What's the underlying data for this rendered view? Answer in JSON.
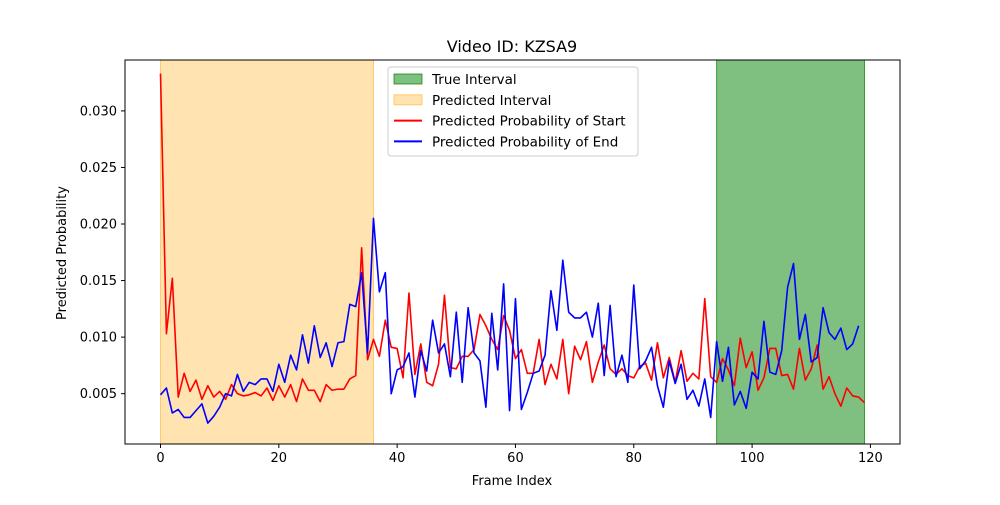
{
  "chart_data": {
    "type": "line",
    "title": "Video ID: KZSA9",
    "xlabel": "Frame Index",
    "ylabel": "Predicted Probability",
    "xlim": [
      -6,
      125
    ],
    "ylim": [
      0.00055,
      0.0345
    ],
    "xticks": [
      0,
      20,
      40,
      60,
      80,
      100,
      120
    ],
    "xtick_labels": [
      "0",
      "20",
      "40",
      "60",
      "80",
      "100",
      "120"
    ],
    "yticks": [
      0.005,
      0.01,
      0.015,
      0.02,
      0.025,
      0.03
    ],
    "ytick_labels": [
      "0.005",
      "0.010",
      "0.015",
      "0.020",
      "0.025",
      "0.030"
    ],
    "grid": false,
    "legend_position": "top-center",
    "legend": [
      {
        "label": "True Interval",
        "kind": "patch",
        "color": "#008000",
        "opacity": 0.5
      },
      {
        "label": "Predicted Interval",
        "kind": "patch",
        "color": "#ffa500",
        "opacity": 0.3
      },
      {
        "label": "Predicted Probability of Start",
        "kind": "line",
        "color": "#ff0000"
      },
      {
        "label": "Predicted Probability of End",
        "kind": "line",
        "color": "#0000ff"
      }
    ],
    "intervals": [
      {
        "name": "Predicted Interval",
        "start": 0,
        "end": 36,
        "color": "#ffa500",
        "opacity": 0.3
      },
      {
        "name": "True Interval",
        "start": 94,
        "end": 119,
        "color": "#008000",
        "opacity": 0.5
      }
    ],
    "series": [
      {
        "name": "Predicted Probability of Start",
        "color": "#ff0000",
        "x_start": 0,
        "values": [
          0.0333,
          0.0103,
          0.0152,
          0.0047,
          0.0068,
          0.0052,
          0.0062,
          0.0045,
          0.0057,
          0.0047,
          0.0052,
          0.0045,
          0.0058,
          0.005,
          0.0048,
          0.0049,
          0.0051,
          0.0048,
          0.0055,
          0.0044,
          0.0057,
          0.0047,
          0.0058,
          0.0043,
          0.0063,
          0.0053,
          0.0053,
          0.0043,
          0.0058,
          0.0053,
          0.0054,
          0.0054,
          0.0063,
          0.0066,
          0.0179,
          0.008,
          0.0098,
          0.0083,
          0.0115,
          0.0091,
          0.009,
          0.0064,
          0.0139,
          0.0067,
          0.0094,
          0.006,
          0.0057,
          0.0076,
          0.0137,
          0.0073,
          0.0072,
          0.0083,
          0.0083,
          0.0089,
          0.012,
          0.011,
          0.0098,
          0.0089,
          0.0119,
          0.0106,
          0.0081,
          0.0089,
          0.0068,
          0.0068,
          0.0098,
          0.0058,
          0.0076,
          0.0063,
          0.0098,
          0.005,
          0.0092,
          0.008,
          0.0096,
          0.006,
          0.0078,
          0.0093,
          0.0072,
          0.0067,
          0.0072,
          0.0066,
          0.0064,
          0.0074,
          0.0077,
          0.0062,
          0.0095,
          0.0064,
          0.0082,
          0.006,
          0.0088,
          0.0061,
          0.0068,
          0.0063,
          0.0134,
          0.0065,
          0.006,
          0.0081,
          0.0071,
          0.0057,
          0.0099,
          0.0073,
          0.0087,
          0.0053,
          0.0064,
          0.009,
          0.009,
          0.0066,
          0.0067,
          0.0054,
          0.009,
          0.0062,
          0.0072,
          0.0093,
          0.0054,
          0.0065,
          0.005,
          0.0039,
          0.0055,
          0.0048,
          0.0047,
          0.0042
        ]
      },
      {
        "name": "Predicted Probability of End",
        "color": "#0000ff",
        "x_start": 0,
        "values": [
          0.0049,
          0.0055,
          0.0033,
          0.0036,
          0.0029,
          0.0029,
          0.0035,
          0.0041,
          0.0024,
          0.003,
          0.0038,
          0.005,
          0.0048,
          0.0067,
          0.0052,
          0.006,
          0.0058,
          0.0063,
          0.0063,
          0.0052,
          0.0076,
          0.006,
          0.0084,
          0.0071,
          0.0102,
          0.0077,
          0.011,
          0.0082,
          0.0095,
          0.0074,
          0.0095,
          0.0096,
          0.0129,
          0.0127,
          0.0157,
          0.0086,
          0.0205,
          0.014,
          0.0157,
          0.005,
          0.0071,
          0.0074,
          0.0086,
          0.0047,
          0.0088,
          0.007,
          0.0115,
          0.0086,
          0.0094,
          0.0065,
          0.0122,
          0.006,
          0.0126,
          0.0086,
          0.0079,
          0.0038,
          0.0121,
          0.0071,
          0.0147,
          0.0035,
          0.0134,
          0.0036,
          0.0051,
          0.0068,
          0.007,
          0.0084,
          0.0141,
          0.0106,
          0.0168,
          0.0122,
          0.0117,
          0.0117,
          0.0122,
          0.01,
          0.013,
          0.0066,
          0.0128,
          0.0065,
          0.0084,
          0.006,
          0.0146,
          0.0072,
          0.0079,
          0.0091,
          0.0057,
          0.0038,
          0.0079,
          0.0059,
          0.0076,
          0.0045,
          0.0053,
          0.0039,
          0.0063,
          0.0029,
          0.0096,
          0.0061,
          0.0091,
          0.004,
          0.0052,
          0.0037,
          0.0069,
          0.0063,
          0.0114,
          0.0069,
          0.0067,
          0.0088,
          0.0144,
          0.0165,
          0.0098,
          0.012,
          0.0078,
          0.0082,
          0.0126,
          0.0104,
          0.0098,
          0.0108,
          0.0089,
          0.0094,
          0.011
        ]
      }
    ]
  }
}
